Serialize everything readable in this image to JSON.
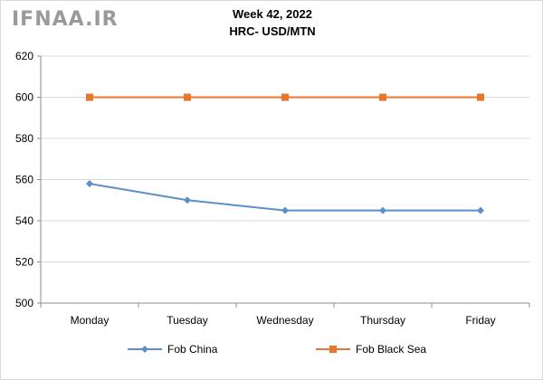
{
  "watermark": "IFNAA.IR",
  "chart_data": {
    "type": "line",
    "title": "Week 42, 2022",
    "subtitle": "HRC- USD/MTN",
    "categories": [
      "Monday",
      "Tuesday",
      "Wednesday",
      "Thursday",
      "Friday"
    ],
    "ylim": [
      500,
      620
    ],
    "yticks": [
      500,
      520,
      540,
      560,
      580,
      600,
      620
    ],
    "grid": "horizontal",
    "legend_position": "bottom",
    "series": [
      {
        "name": "Fob China",
        "values": [
          558,
          550,
          545,
          545,
          545
        ],
        "color": "#5b8fc9",
        "marker": "diamond"
      },
      {
        "name": "Fob Black Sea",
        "values": [
          600,
          600,
          600,
          600,
          600
        ],
        "color": "#e8772e",
        "marker": "square"
      }
    ]
  }
}
